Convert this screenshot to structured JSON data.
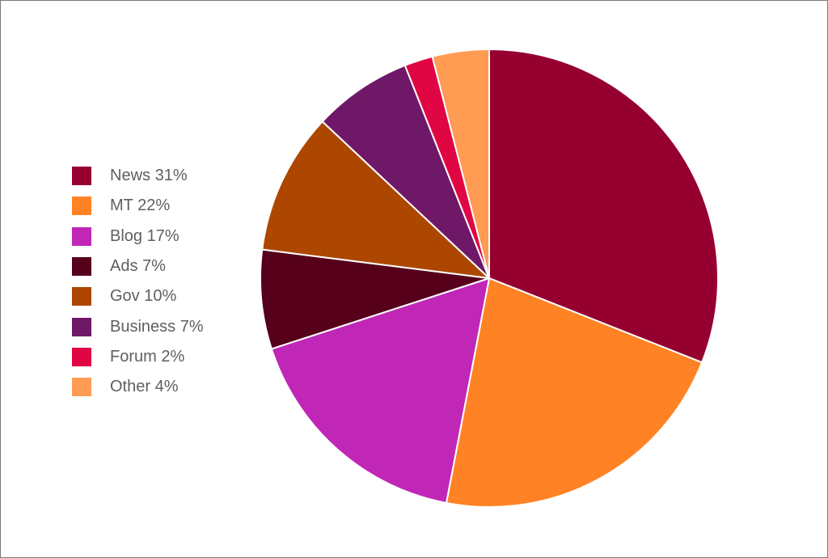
{
  "chart_data": {
    "type": "pie",
    "title": "",
    "start_angle": "12 o'clock",
    "direction": "clockwise",
    "legend_position": "left",
    "slices": [
      {
        "label": "News 31%",
        "value": 31,
        "color": "#950030"
      },
      {
        "label": "MT 22%",
        "value": 22,
        "color": "#FF8324"
      },
      {
        "label": "Blog 17%",
        "value": 17,
        "color": "#C027B6"
      },
      {
        "label": "Ads 7%",
        "value": 7,
        "color": "#56001C"
      },
      {
        "label": "Gov 10%",
        "value": 10,
        "color": "#AD4700"
      },
      {
        "label": "Business 7%",
        "value": 7,
        "color": "#701868"
      },
      {
        "label": "Forum 2%",
        "value": 2,
        "color": "#E00543"
      },
      {
        "label": "Other 4%",
        "value": 4,
        "color": "#FF9B52"
      }
    ]
  }
}
